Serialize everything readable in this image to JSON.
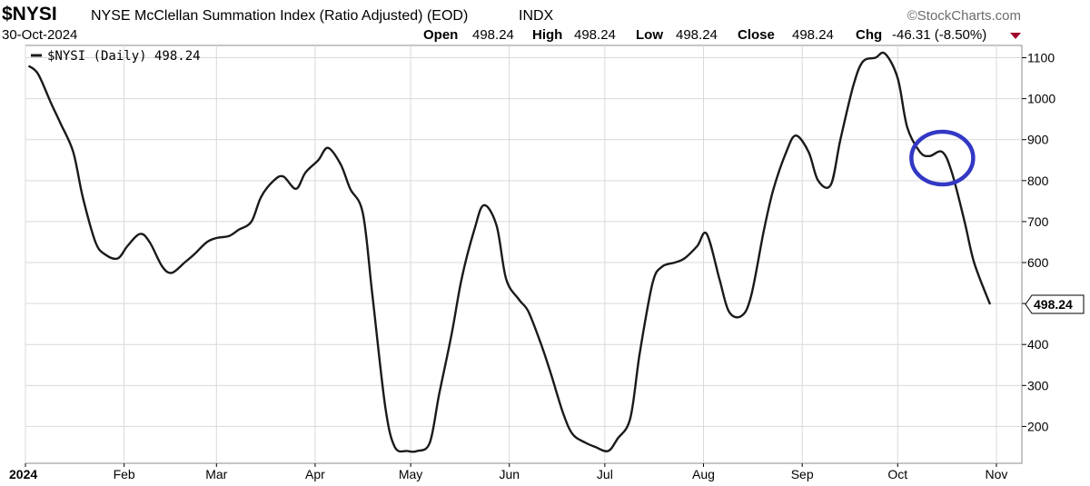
{
  "header": {
    "symbol": "$NYSI",
    "title": "NYSE McClellan Summation Index (Ratio Adjusted) (EOD)",
    "exchange": "INDX",
    "date": "30-Oct-2024",
    "watermark": "©StockCharts.com",
    "open_label": "Open",
    "open_value": "498.24",
    "high_label": "High",
    "high_value": "498.24",
    "low_label": "Low",
    "low_value": "498.24",
    "close_label": "Close",
    "close_value": "498.24",
    "chg_label": "Chg",
    "chg_value": "-46.31 (-8.50%)"
  },
  "legend": {
    "text": "$NYSI (Daily) 498.24"
  },
  "last_value_label": "498.24",
  "colors": {
    "line": "#1a1a1a",
    "grid": "#d9d9d9",
    "frame": "#8c8c8c",
    "circle": "#3338c4",
    "down": "#a0002a",
    "watermark": "#6b6b6b"
  },
  "chart_data": {
    "type": "line",
    "title": "NYSE McClellan Summation Index (Ratio Adjusted) (EOD)",
    "xlabel": "",
    "ylabel": "",
    "ylim": [
      110,
      1130
    ],
    "yticks": [
      200,
      300,
      400,
      500,
      600,
      700,
      800,
      900,
      1000,
      1100
    ],
    "xlim": [
      "2024-01-01",
      "2024-11-09"
    ],
    "xticks": [
      {
        "date": "2024-01-01",
        "label": "2024",
        "bold": true
      },
      {
        "date": "2024-02-01",
        "label": "Feb"
      },
      {
        "date": "2024-03-01",
        "label": "Mar"
      },
      {
        "date": "2024-04-01",
        "label": "Apr"
      },
      {
        "date": "2024-05-01",
        "label": "May"
      },
      {
        "date": "2024-06-01",
        "label": "Jun"
      },
      {
        "date": "2024-07-01",
        "label": "Jul"
      },
      {
        "date": "2024-08-01",
        "label": "Aug"
      },
      {
        "date": "2024-09-01",
        "label": "Sep"
      },
      {
        "date": "2024-10-01",
        "label": "Oct"
      },
      {
        "date": "2024-11-01",
        "label": "Nov"
      }
    ],
    "grid": true,
    "legend_position": "top-left",
    "annotation": {
      "type": "circle",
      "date": "2024-10-15",
      "value": 855
    },
    "series": [
      {
        "name": "$NYSI (Daily)",
        "x": [
          "2024-01-02",
          "2024-01-05",
          "2024-01-09",
          "2024-01-12",
          "2024-01-16",
          "2024-01-19",
          "2024-01-23",
          "2024-01-26",
          "2024-01-30",
          "2024-02-02",
          "2024-02-06",
          "2024-02-09",
          "2024-02-13",
          "2024-02-16",
          "2024-02-20",
          "2024-02-23",
          "2024-02-27",
          "2024-03-01",
          "2024-03-05",
          "2024-03-08",
          "2024-03-12",
          "2024-03-15",
          "2024-03-19",
          "2024-03-22",
          "2024-03-26",
          "2024-03-29",
          "2024-04-02",
          "2024-04-05",
          "2024-04-09",
          "2024-04-12",
          "2024-04-16",
          "2024-04-19",
          "2024-04-23",
          "2024-04-26",
          "2024-04-30",
          "2024-05-03",
          "2024-05-07",
          "2024-05-10",
          "2024-05-14",
          "2024-05-17",
          "2024-05-21",
          "2024-05-24",
          "2024-05-28",
          "2024-05-31",
          "2024-06-04",
          "2024-06-07",
          "2024-06-11",
          "2024-06-14",
          "2024-06-18",
          "2024-06-21",
          "2024-06-25",
          "2024-06-28",
          "2024-07-02",
          "2024-07-05",
          "2024-07-09",
          "2024-07-12",
          "2024-07-16",
          "2024-07-19",
          "2024-07-23",
          "2024-07-26",
          "2024-07-30",
          "2024-08-02",
          "2024-08-06",
          "2024-08-09",
          "2024-08-13",
          "2024-08-16",
          "2024-08-20",
          "2024-08-23",
          "2024-08-27",
          "2024-08-30",
          "2024-09-03",
          "2024-09-06",
          "2024-09-10",
          "2024-09-13",
          "2024-09-17",
          "2024-09-20",
          "2024-09-24",
          "2024-09-27",
          "2024-10-01",
          "2024-10-04",
          "2024-10-08",
          "2024-10-11",
          "2024-10-15",
          "2024-10-18",
          "2024-10-22",
          "2024-10-25",
          "2024-10-30"
        ],
        "y": [
          1080,
          1060,
          990,
          940,
          870,
          760,
          650,
          620,
          610,
          640,
          670,
          650,
          590,
          575,
          600,
          620,
          650,
          660,
          665,
          680,
          700,
          760,
          800,
          810,
          780,
          820,
          850,
          880,
          840,
          780,
          720,
          520,
          250,
          150,
          140,
          140,
          160,
          280,
          430,
          560,
          680,
          740,
          690,
          560,
          510,
          480,
          400,
          330,
          230,
          180,
          160,
          150,
          140,
          170,
          220,
          380,
          550,
          590,
          600,
          610,
          640,
          670,
          560,
          480,
          470,
          520,
          680,
          780,
          870,
          910,
          870,
          800,
          790,
          900,
          1030,
          1090,
          1100,
          1110,
          1050,
          930,
          870,
          860,
          870,
          820,
          700,
          600,
          498
        ]
      }
    ]
  }
}
